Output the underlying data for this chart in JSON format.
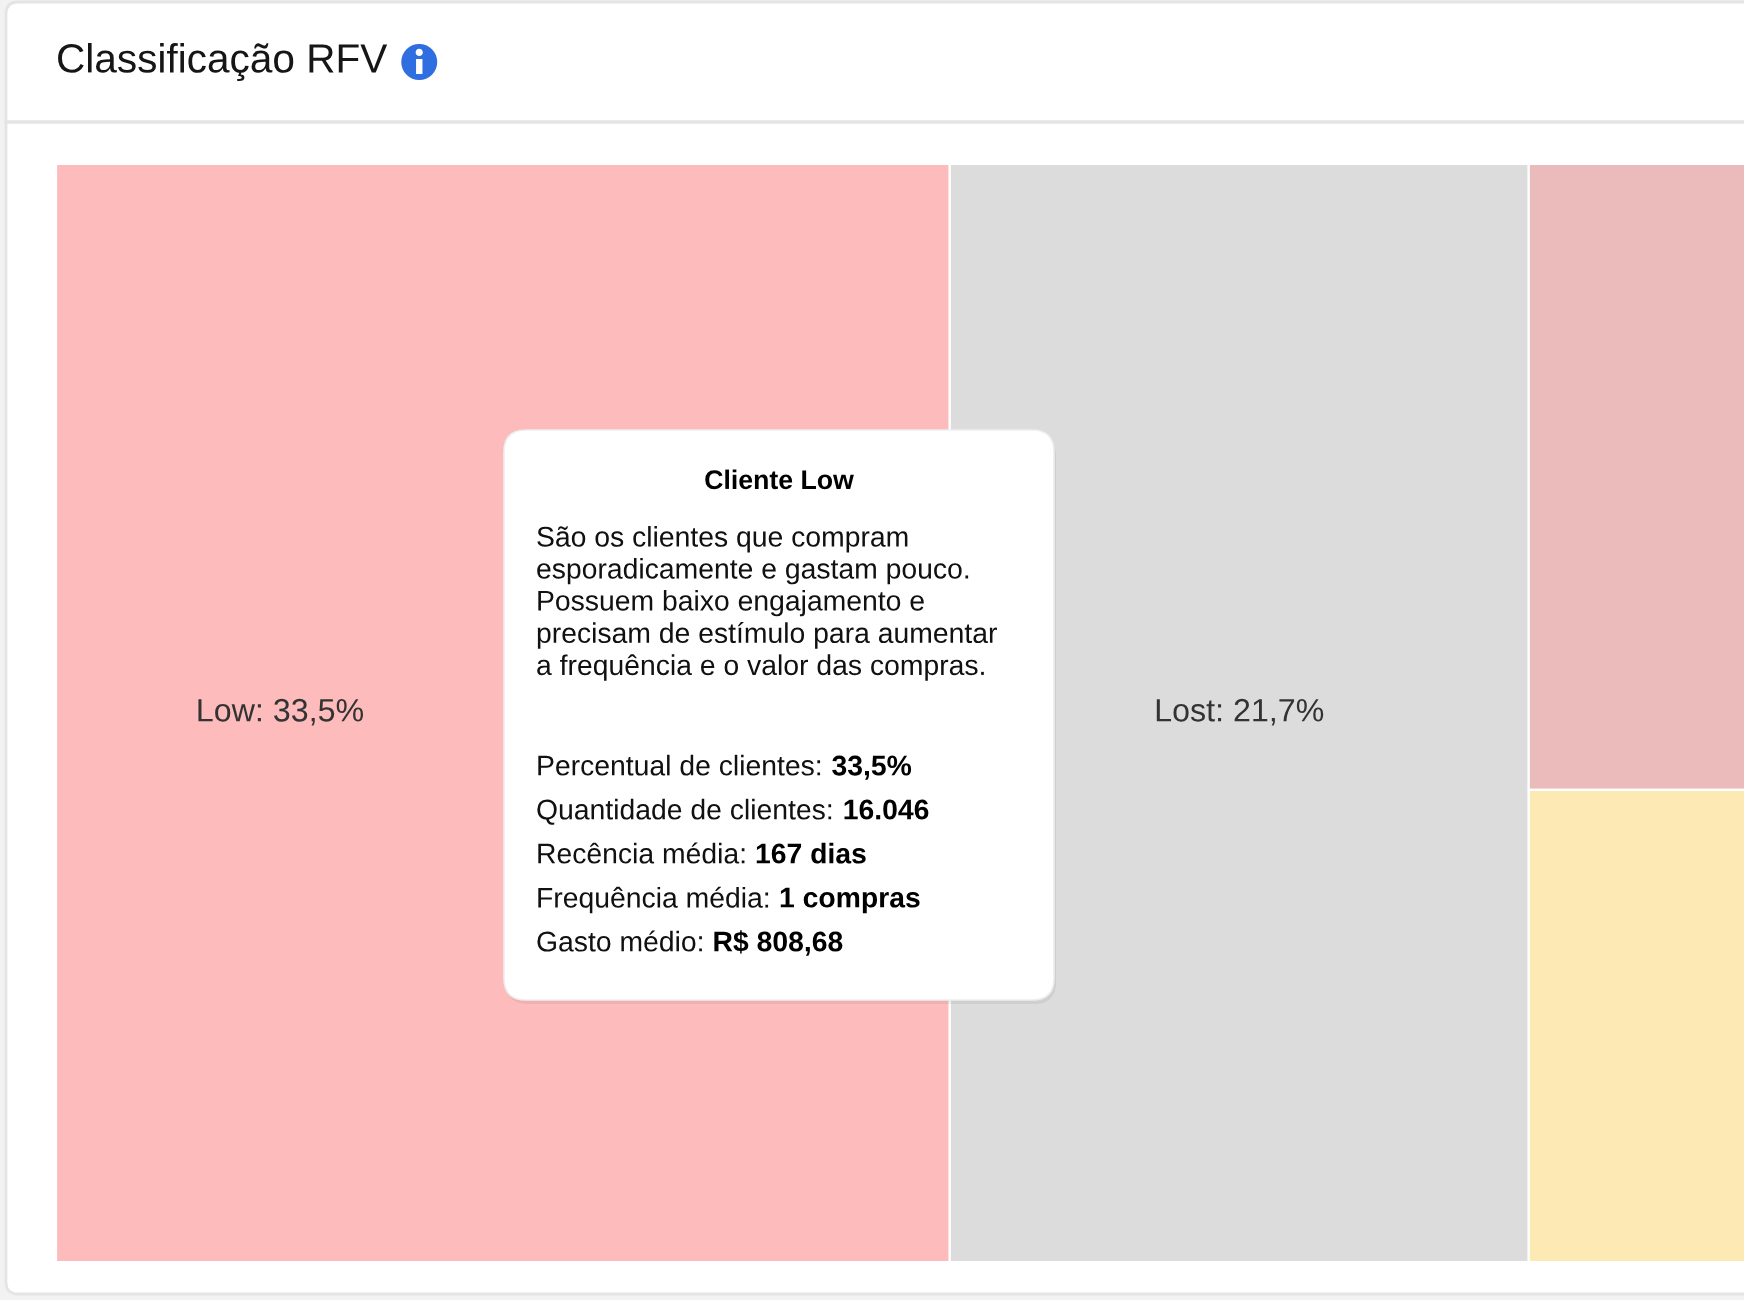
{
  "chart_data": {
    "type": "other",
    "title": "Classificação RFV",
    "values": [
      33.5,
      21.7,
      null,
      null
    ],
    "colors": [
      "#fdbbbb",
      "#dcdcdc",
      "#ebbbbb",
      "#fde9b4"
    ],
    "value_labels": [
      "Low: 33,5%",
      "Lost: 21,7%",
      null,
      null
    ],
    "annotations": [
      "Cliente Low",
      "São os clientes que compram\nesporadicamente e gastam pouco.\nPossuem baixo engajamento e\nprecisam de estímulo para aumentar\na frequência e o valor das compras.",
      "Percentual de clientes: 33,5%",
      "Quantidade de clientes: 16.046",
      "Recência média: 167 dias",
      "Frequência média: 1 compras",
      "Gasto médio: R$ 808,68"
    ]
  }
}
